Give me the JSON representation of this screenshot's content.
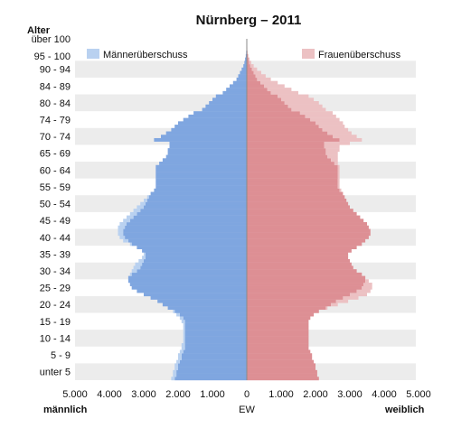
{
  "chart_data": {
    "type": "population-pyramid",
    "title": "Nürnberg – 2011",
    "y_axis_title": "Alter",
    "x_left_label": "männlich",
    "x_center_label": "EW",
    "x_right_label": "weiblich",
    "x_ticks": [
      "5.000",
      "4.000",
      "3.000",
      "2.000",
      "1.000",
      "0",
      "1.000",
      "2.000",
      "3.000",
      "4.000",
      "5.000"
    ],
    "x_range": [
      -5000,
      5000
    ],
    "legend": {
      "male_surplus": "Männerüberschuss",
      "female_surplus": "Frauenüberschuss"
    },
    "colors": {
      "male": "#7fa6e0",
      "male_surplus": "#b9d1f0",
      "female": "#dd8f94",
      "female_surplus": "#ecc1c3",
      "band": "#ececec"
    },
    "age_labels": [
      "über 100",
      "95 - 100",
      "90 - 94",
      "84 - 89",
      "80 - 84",
      "74 - 79",
      "70 - 74",
      "65 - 69",
      "60 - 64",
      "55 - 59",
      "50 - 54",
      "45 - 49",
      "40 - 44",
      "35 - 39",
      "30 - 34",
      "25 - 29",
      "20 - 24",
      "15 - 19",
      "10 - 14",
      "5 - 9",
      "unter 5"
    ],
    "age_label_positions": [
      101,
      96,
      92,
      87,
      82,
      77,
      72,
      67,
      62,
      57,
      52,
      47,
      42,
      37,
      32,
      27,
      22,
      17,
      12,
      7,
      2
    ],
    "ages": [
      0,
      1,
      2,
      3,
      4,
      5,
      6,
      7,
      8,
      9,
      10,
      11,
      12,
      13,
      14,
      15,
      16,
      17,
      18,
      19,
      20,
      21,
      22,
      23,
      24,
      25,
      26,
      27,
      28,
      29,
      30,
      31,
      32,
      33,
      34,
      35,
      36,
      37,
      38,
      39,
      40,
      41,
      42,
      43,
      44,
      45,
      46,
      47,
      48,
      49,
      50,
      51,
      52,
      53,
      54,
      55,
      56,
      57,
      58,
      59,
      60,
      61,
      62,
      63,
      64,
      65,
      66,
      67,
      68,
      69,
      70,
      71,
      72,
      73,
      74,
      75,
      76,
      77,
      78,
      79,
      80,
      81,
      82,
      83,
      84,
      85,
      86,
      87,
      88,
      89,
      90,
      91,
      92,
      93,
      94,
      95,
      96,
      97,
      98,
      99,
      100
    ],
    "male": [
      2200,
      2150,
      2150,
      2100,
      2100,
      2050,
      2000,
      2000,
      1950,
      1900,
      1900,
      1850,
      1850,
      1850,
      1850,
      1850,
      1850,
      1900,
      1950,
      2050,
      2150,
      2300,
      2450,
      2600,
      2800,
      3000,
      3200,
      3350,
      3400,
      3450,
      3450,
      3400,
      3350,
      3300,
      3250,
      3150,
      3050,
      3000,
      3050,
      3200,
      3400,
      3600,
      3700,
      3750,
      3750,
      3750,
      3700,
      3600,
      3500,
      3400,
      3300,
      3200,
      3100,
      3000,
      2900,
      2800,
      2700,
      2650,
      2650,
      2650,
      2650,
      2650,
      2650,
      2650,
      2550,
      2450,
      2350,
      2300,
      2300,
      2250,
      2250,
      2700,
      2500,
      2350,
      2200,
      2100,
      2000,
      1850,
      1700,
      1550,
      1300,
      1200,
      1100,
      1000,
      900,
      700,
      600,
      500,
      400,
      300,
      250,
      200,
      150,
      100,
      70,
      50,
      30,
      20,
      12,
      8,
      5
    ],
    "female": [
      2100,
      2050,
      2050,
      2000,
      2000,
      1950,
      1900,
      1900,
      1850,
      1800,
      1800,
      1800,
      1800,
      1800,
      1800,
      1800,
      1800,
      1800,
      1850,
      1950,
      2100,
      2350,
      2650,
      2950,
      3250,
      3500,
      3600,
      3650,
      3650,
      3550,
      3450,
      3350,
      3200,
      3100,
      3050,
      3000,
      2950,
      2950,
      3050,
      3200,
      3350,
      3450,
      3550,
      3600,
      3600,
      3550,
      3500,
      3400,
      3300,
      3200,
      3100,
      3000,
      2950,
      2900,
      2850,
      2800,
      2750,
      2700,
      2700,
      2700,
      2700,
      2700,
      2700,
      2700,
      2650,
      2650,
      2650,
      2650,
      2700,
      2700,
      3000,
      3350,
      3200,
      3050,
      2950,
      2850,
      2800,
      2700,
      2600,
      2500,
      2300,
      2200,
      2100,
      1950,
      1800,
      1500,
      1300,
      1100,
      900,
      700,
      550,
      420,
      300,
      200,
      130,
      80,
      50,
      30,
      15,
      8,
      5
    ]
  }
}
